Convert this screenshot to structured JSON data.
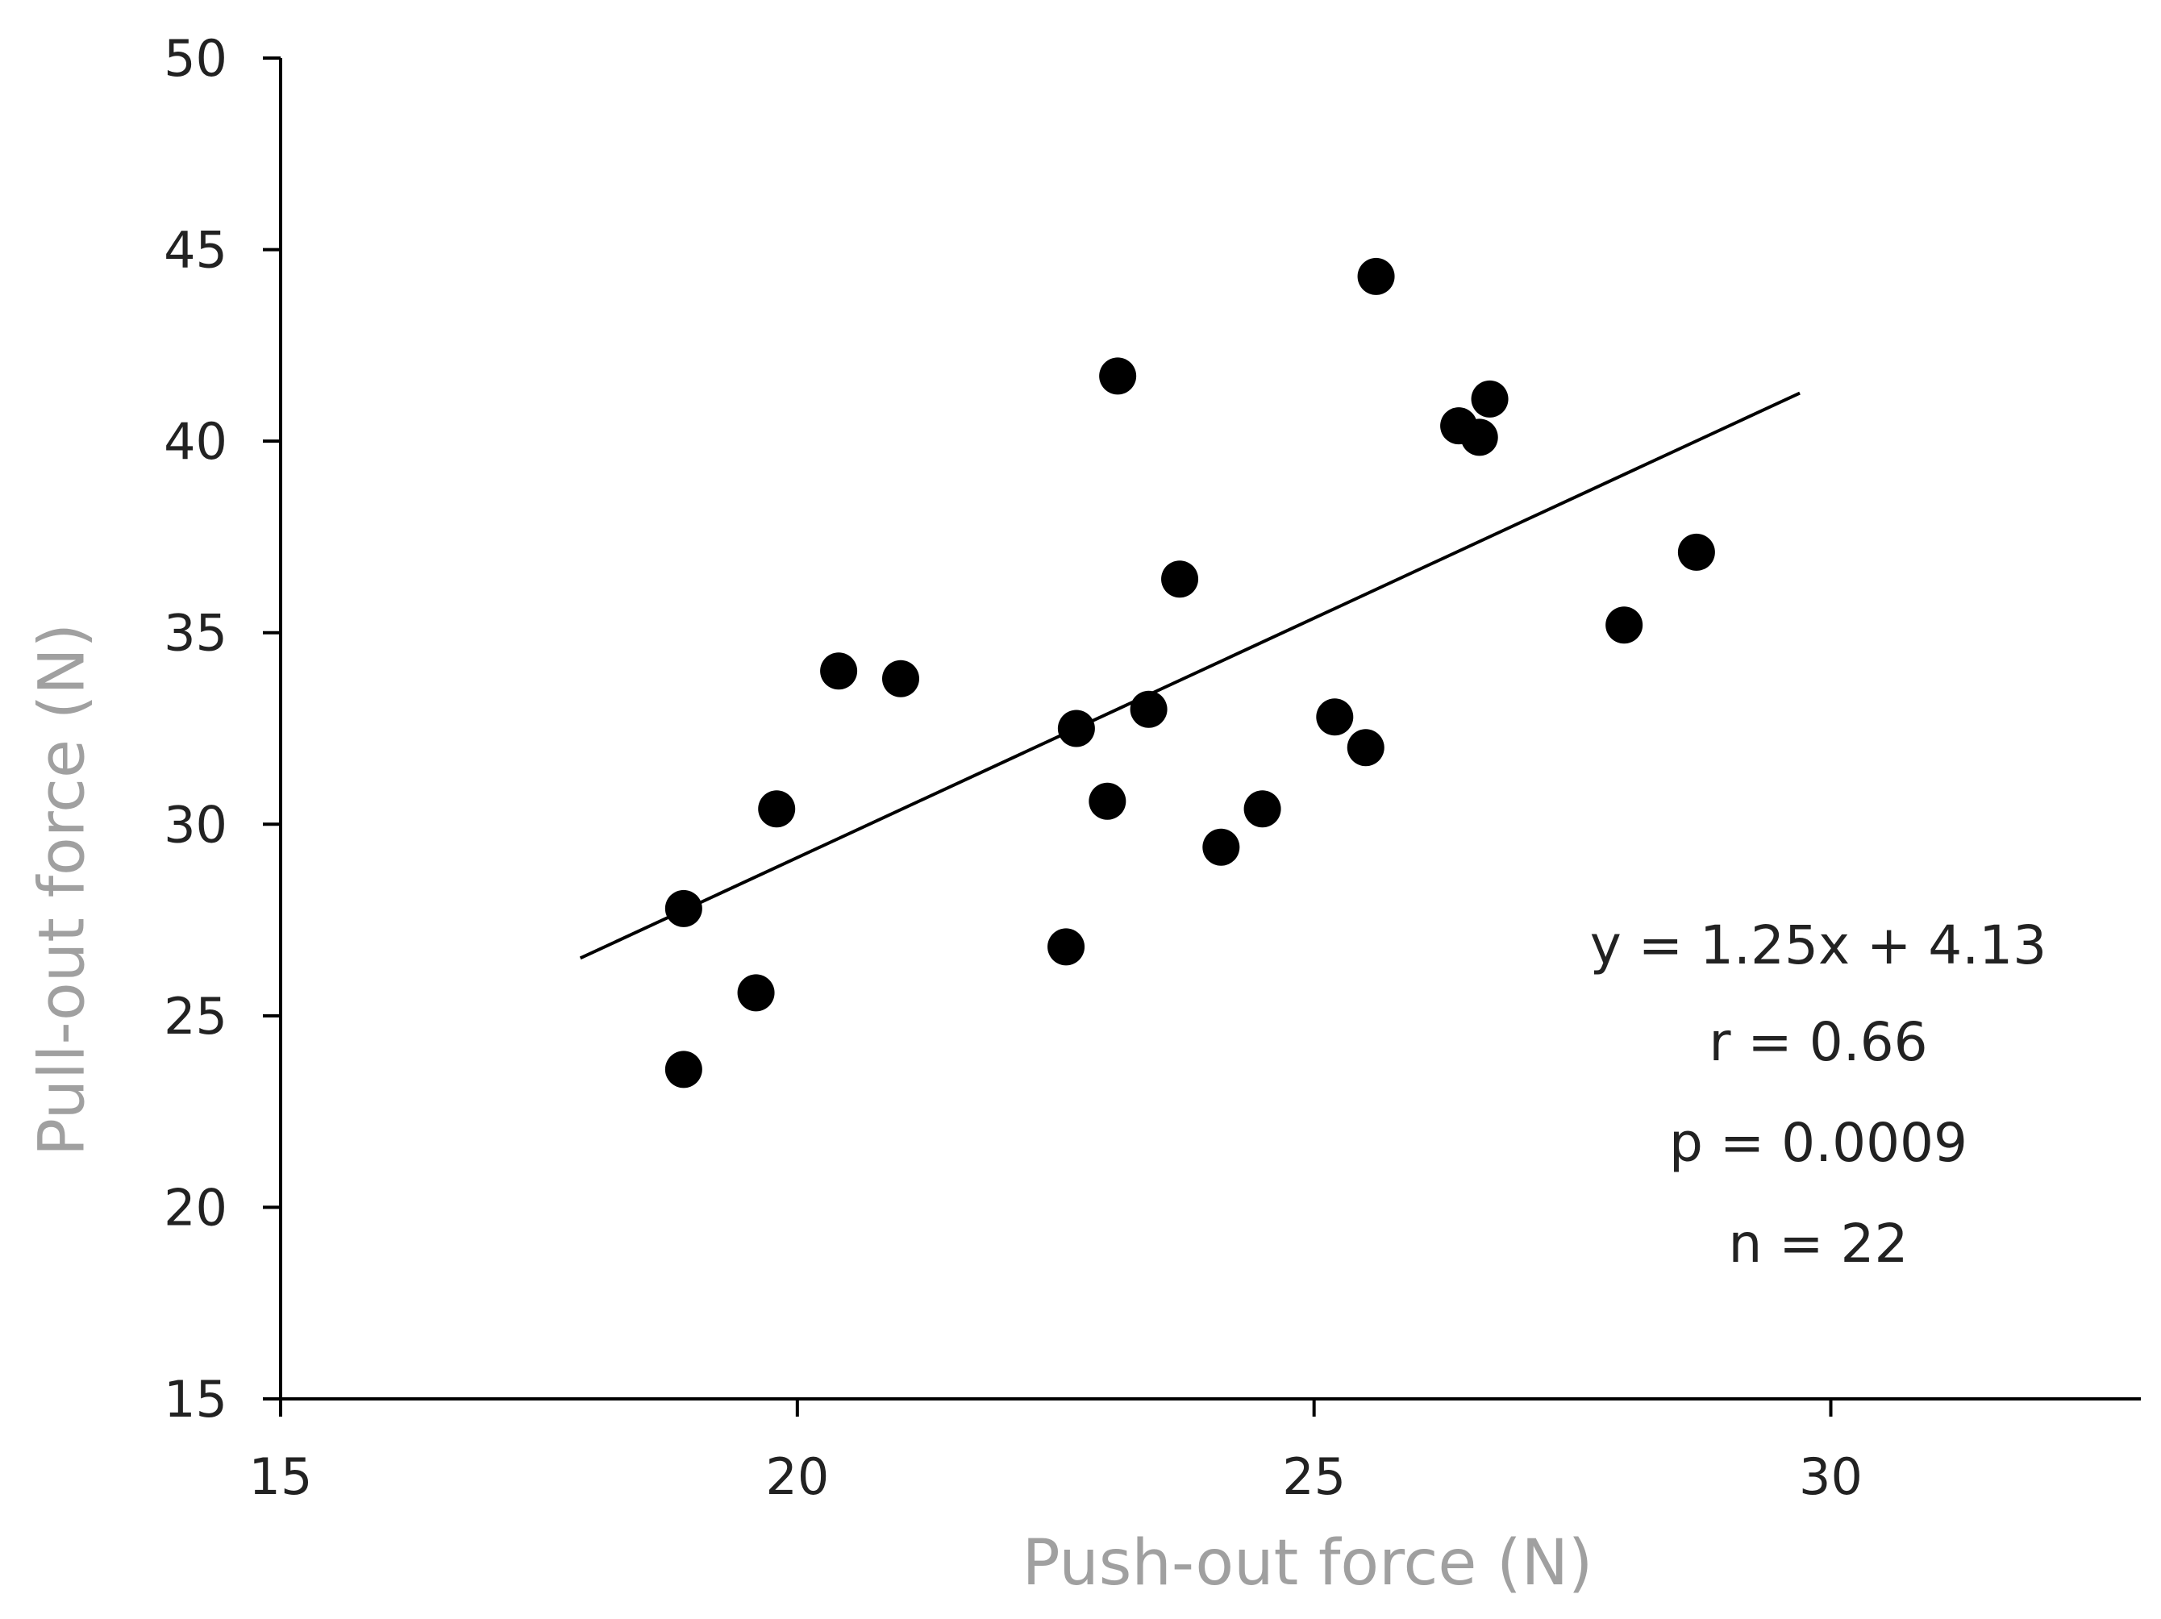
{
  "chart_data": {
    "type": "scatter",
    "title": "",
    "xlabel": "Push-out force (N)",
    "ylabel": "Pull-out force (N)",
    "xlim": [
      15,
      33
    ],
    "ylim": [
      15,
      50
    ],
    "x_ticks": [
      15,
      20,
      25,
      30
    ],
    "y_ticks": [
      15,
      20,
      25,
      30,
      35,
      40,
      45,
      50
    ],
    "x_tick_labels": [
      "15",
      "20",
      "25",
      "30"
    ],
    "y_tick_labels": [
      "15",
      "20",
      "25",
      "30",
      "35",
      "40",
      "45",
      "50"
    ],
    "grid": false,
    "legend": "none",
    "marker_color": "#000000",
    "series": [
      {
        "points": [
          {
            "x": 18.9,
            "y": 27.8
          },
          {
            "x": 18.9,
            "y": 23.6
          },
          {
            "x": 19.6,
            "y": 25.6
          },
          {
            "x": 19.8,
            "y": 30.4
          },
          {
            "x": 20.4,
            "y": 34.0
          },
          {
            "x": 21.0,
            "y": 33.8
          },
          {
            "x": 22.6,
            "y": 26.8
          },
          {
            "x": 22.7,
            "y": 32.5
          },
          {
            "x": 23.0,
            "y": 30.6
          },
          {
            "x": 23.1,
            "y": 41.7
          },
          {
            "x": 23.4,
            "y": 33.0
          },
          {
            "x": 23.7,
            "y": 36.4
          },
          {
            "x": 24.1,
            "y": 29.4
          },
          {
            "x": 24.5,
            "y": 30.4
          },
          {
            "x": 25.2,
            "y": 32.8
          },
          {
            "x": 25.5,
            "y": 32.0
          },
          {
            "x": 25.6,
            "y": 44.3
          },
          {
            "x": 26.4,
            "y": 40.4
          },
          {
            "x": 26.6,
            "y": 40.1
          },
          {
            "x": 26.7,
            "y": 41.1
          },
          {
            "x": 28.0,
            "y": 35.2
          },
          {
            "x": 28.7,
            "y": 37.1
          }
        ]
      }
    ],
    "trendline": {
      "slope": 1.25,
      "intercept": 4.13,
      "x_range": [
        17.9,
        29.7
      ]
    },
    "annotations": {
      "equation": "y = 1.25x + 4.13",
      "r": "r = 0.66",
      "p": "p = 0.0009",
      "n": "n = 22"
    }
  }
}
